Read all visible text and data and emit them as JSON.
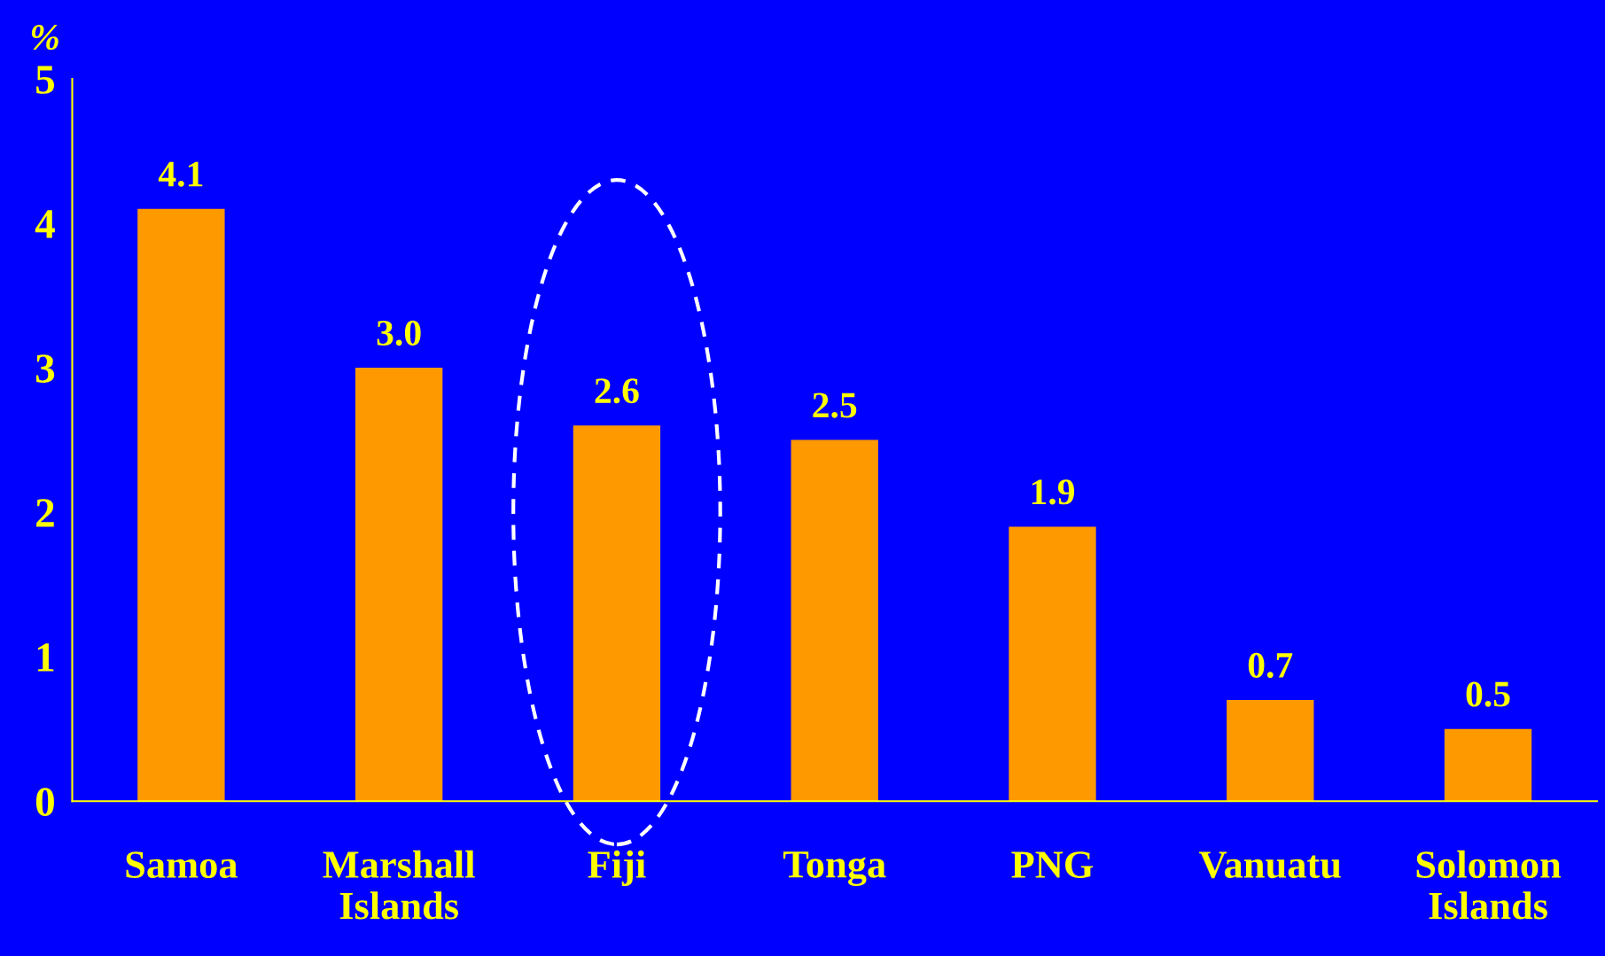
{
  "chart_data": {
    "type": "bar",
    "ylabel": "%",
    "categories": [
      "Samoa",
      "Marshall\nIslands",
      "Fiji",
      "Tonga",
      "PNG",
      "Vanuatu",
      "Solomon\nIslands"
    ],
    "values": [
      4.1,
      3.0,
      2.6,
      2.5,
      1.9,
      0.7,
      0.5
    ],
    "color": "#ff9900",
    "ylim": [
      0,
      5
    ],
    "yticks": [
      0,
      1,
      2,
      3,
      4,
      5
    ],
    "grid": false,
    "data_labels": true,
    "value_labels": [
      "4.1",
      "3.0",
      "2.6",
      "2.5",
      "1.9",
      "0.7",
      "0.5"
    ]
  }
}
